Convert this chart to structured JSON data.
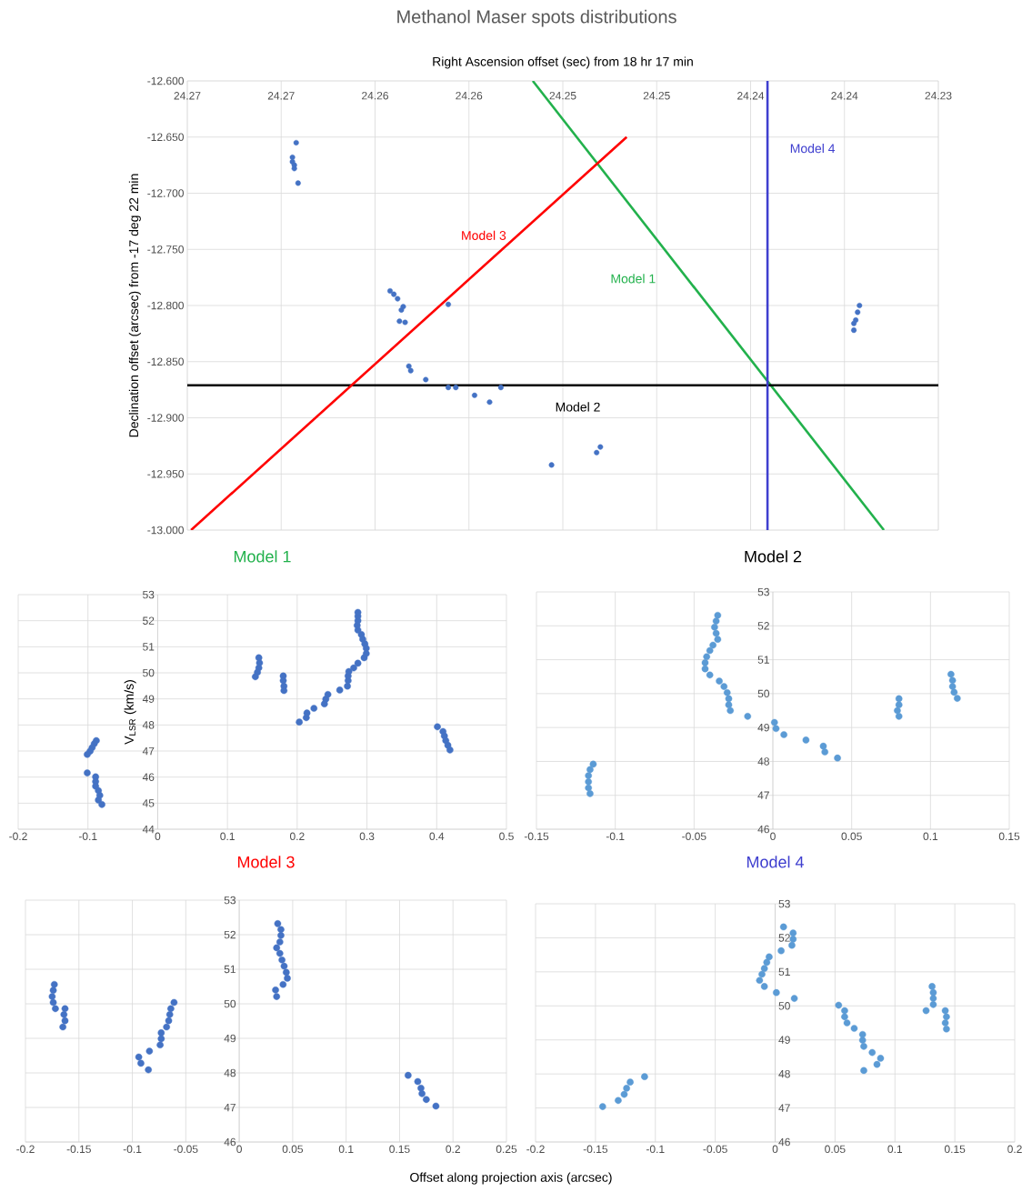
{
  "chart_data": [
    {
      "type": "scatter",
      "title": "Methanol Maser spots distributions",
      "xlabel": "Right Ascension offset (sec) from 18 hr 17 min",
      "ylabel": "Declination offset (arcsec) from -17 deg 22 min",
      "xlim": [
        24.27,
        24.23
      ],
      "ylim": [
        -13.0,
        -12.6
      ],
      "xticks": [
        {
          "value": 24.27,
          "label": "24.27"
        },
        {
          "value": 24.265,
          "label": "24.27"
        },
        {
          "value": 24.26,
          "label": "24.26"
        },
        {
          "value": 24.255,
          "label": "24.26"
        },
        {
          "value": 24.25,
          "label": "24.25"
        },
        {
          "value": 24.245,
          "label": "24.25"
        },
        {
          "value": 24.24,
          "label": "24.24"
        },
        {
          "value": 24.235,
          "label": "24.24"
        },
        {
          "value": 24.23,
          "label": "24.23"
        }
      ],
      "yticks": [
        {
          "value": -13.0,
          "label": "-13.000"
        },
        {
          "value": -12.95,
          "label": "-12.950"
        },
        {
          "value": -12.9,
          "label": "-12.900"
        },
        {
          "value": -12.85,
          "label": "-12.850"
        },
        {
          "value": -12.8,
          "label": "-12.800"
        },
        {
          "value": -12.75,
          "label": "-12.750"
        },
        {
          "value": -12.7,
          "label": "-12.700"
        },
        {
          "value": -12.65,
          "label": "-12.650"
        },
        {
          "value": -12.6,
          "label": "-12.600"
        }
      ],
      "grid": true,
      "series": [
        {
          "marker": "circle",
          "color": "#4472c4",
          "x": [
            24.2642,
            24.2644,
            24.2644,
            24.2643,
            24.2643,
            24.2641,
            24.2592,
            24.259,
            24.2588,
            24.2585,
            24.2586,
            24.2587,
            24.2584,
            24.2561,
            24.2582,
            24.2581,
            24.2573,
            24.2561,
            24.2557,
            24.2547,
            24.2539,
            24.2533,
            24.2506,
            24.2482,
            24.248,
            24.2342,
            24.2343,
            24.2344,
            24.2345,
            24.2345
          ],
          "values": [
            -12.655,
            -12.668,
            -12.672,
            -12.675,
            -12.678,
            -12.691,
            -12.787,
            -12.79,
            -12.794,
            -12.801,
            -12.804,
            -12.814,
            -12.815,
            -12.799,
            -12.854,
            -12.858,
            -12.866,
            -12.873,
            -12.873,
            -12.88,
            -12.886,
            -12.873,
            -12.942,
            -12.931,
            -12.926,
            -12.8,
            -12.806,
            -12.813,
            -12.816,
            -12.822
          ]
        },
        {
          "type": "line",
          "name": "Model 1",
          "color": "#22b14c",
          "x": [
            24.2516,
            24.2329
          ],
          "values": [
            -12.6,
            -13.0
          ]
        },
        {
          "type": "line",
          "name": "Model 2",
          "color": "#000000",
          "x": [
            24.27,
            24.23
          ],
          "values": [
            -12.871,
            -12.871
          ]
        },
        {
          "type": "line",
          "name": "Model 3",
          "color": "#ff0000",
          "x": [
            24.2698,
            24.2466
          ],
          "values": [
            -13.0,
            -12.65
          ]
        },
        {
          "type": "line",
          "name": "Model 4",
          "color": "#3f3fcf",
          "x": [
            24.2391,
            24.2391
          ],
          "values": [
            -12.6,
            -13.0
          ]
        }
      ]
    },
    {
      "type": "scatter",
      "title": "Model 1",
      "ylabel": "V$_{LSR}$ (km/s)",
      "xlim": [
        -0.2,
        0.5
      ],
      "ylim": [
        44,
        53
      ],
      "xticks": [
        -0.2,
        -0.1,
        0,
        0.1,
        0.2,
        0.3,
        0.4,
        0.5
      ],
      "yticks": [
        44,
        45,
        46,
        47,
        48,
        49,
        50,
        51,
        52,
        53
      ],
      "grid": true,
      "marker": "circle",
      "series": [
        {
          "color": "#4472c4",
          "x": [
            -0.101,
            -0.089,
            -0.089,
            -0.089,
            -0.085,
            -0.083,
            -0.085,
            -0.08,
            -0.088,
            -0.091,
            -0.094,
            -0.097,
            -0.101,
            0.145,
            0.146,
            0.145,
            0.143,
            0.14,
            0.18,
            0.18,
            0.181,
            0.181,
            0.203,
            0.213,
            0.214,
            0.224,
            0.239,
            0.241,
            0.244,
            0.261,
            0.272,
            0.273,
            0.273,
            0.274,
            0.281,
            0.287,
            0.296,
            0.299,
            0.299,
            0.297,
            0.294,
            0.292,
            0.287,
            0.286,
            0.287,
            0.287,
            0.287,
            0.401,
            0.409,
            0.411,
            0.413,
            0.416,
            0.419
          ],
          "values": [
            46.16,
            46.01,
            45.83,
            45.65,
            45.48,
            45.3,
            45.12,
            44.95,
            47.4,
            47.28,
            47.13,
            46.99,
            46.87,
            50.58,
            50.38,
            50.19,
            50.02,
            49.85,
            49.88,
            49.7,
            49.49,
            49.32,
            48.11,
            48.28,
            48.46,
            48.64,
            48.81,
            48.99,
            49.17,
            49.34,
            49.49,
            49.7,
            49.88,
            50.05,
            50.19,
            50.37,
            50.58,
            50.74,
            50.94,
            51.11,
            51.29,
            51.47,
            51.64,
            51.82,
            52.0,
            52.17,
            52.32,
            47.93,
            47.75,
            47.58,
            47.4,
            47.22,
            47.04
          ]
        }
      ]
    },
    {
      "type": "scatter",
      "title": "Model 2",
      "xlim": [
        -0.15,
        0.15
      ],
      "ylim": [
        46,
        53
      ],
      "xticks": [
        -0.15,
        -0.1,
        -0.05,
        0,
        0.05,
        0.1,
        0.15
      ],
      "yticks": [
        46,
        47,
        48,
        49,
        50,
        51,
        52,
        53
      ],
      "grid": true,
      "marker": "circle",
      "series": [
        {
          "color": "#5b9bd5",
          "x": [
            -0.114,
            -0.116,
            -0.117,
            -0.117,
            -0.117,
            -0.116,
            -0.035,
            -0.036,
            -0.037,
            -0.036,
            -0.035,
            -0.038,
            -0.04,
            -0.042,
            -0.043,
            -0.043,
            -0.04,
            -0.034,
            -0.031,
            -0.029,
            -0.028,
            -0.028,
            -0.027,
            -0.016,
            0.001,
            0.002,
            0.007,
            0.021,
            0.032,
            0.033,
            0.041,
            0.08,
            0.08,
            0.079,
            0.08,
            0.113,
            0.114,
            0.114,
            0.115,
            0.117
          ],
          "values": [
            47.92,
            47.76,
            47.58,
            47.4,
            47.22,
            47.05,
            52.31,
            52.14,
            51.96,
            51.78,
            51.6,
            51.43,
            51.27,
            51.09,
            50.91,
            50.73,
            50.55,
            50.37,
            50.21,
            50.03,
            49.85,
            49.67,
            49.5,
            49.33,
            49.15,
            48.97,
            48.79,
            48.63,
            48.45,
            48.28,
            48.1,
            49.85,
            49.67,
            49.5,
            49.33,
            50.57,
            50.39,
            50.21,
            50.04,
            49.86
          ]
        }
      ]
    },
    {
      "type": "scatter",
      "title": "Model 3",
      "xlabel": "Offset along projection axis (arcsec)",
      "xlim": [
        -0.2,
        0.25
      ],
      "ylim": [
        46,
        53
      ],
      "xticks": [
        -0.2,
        -0.15,
        -0.1,
        -0.05,
        0,
        0.05,
        0.1,
        0.15,
        0.2,
        0.25
      ],
      "yticks": [
        46,
        47,
        48,
        49,
        50,
        51,
        52,
        53
      ],
      "grid": true,
      "marker": "circle",
      "series": [
        {
          "color": "#4472c4",
          "x": [
            -0.173,
            -0.174,
            -0.175,
            -0.174,
            -0.172,
            -0.163,
            -0.164,
            -0.163,
            -0.165,
            -0.061,
            -0.064,
            -0.065,
            -0.066,
            -0.068,
            -0.073,
            -0.073,
            -0.074,
            -0.084,
            -0.094,
            -0.092,
            -0.085,
            0.036,
            0.039,
            0.039,
            0.038,
            0.035,
            0.038,
            0.04,
            0.042,
            0.044,
            0.045,
            0.041,
            0.034,
            0.035,
            0.158,
            0.167,
            0.17,
            0.171,
            0.175,
            0.184
          ],
          "values": [
            50.56,
            50.39,
            50.21,
            50.04,
            49.86,
            49.86,
            49.69,
            49.51,
            49.33,
            50.04,
            49.86,
            49.69,
            49.51,
            49.33,
            49.16,
            48.99,
            48.81,
            48.63,
            48.46,
            48.28,
            48.09,
            52.32,
            52.15,
            51.98,
            51.79,
            51.62,
            51.46,
            51.27,
            51.09,
            50.91,
            50.74,
            50.56,
            50.4,
            50.21,
            47.93,
            47.75,
            47.56,
            47.4,
            47.23,
            47.04
          ]
        }
      ]
    },
    {
      "type": "scatter",
      "title": "Model 4",
      "xlim": [
        -0.2,
        0.2
      ],
      "ylim": [
        46,
        53
      ],
      "xticks": [
        -0.2,
        -0.15,
        -0.1,
        -0.05,
        0,
        0.05,
        0.1,
        0.15,
        0.2
      ],
      "yticks": [
        46,
        47,
        48,
        49,
        50,
        51,
        52,
        53
      ],
      "grid": true,
      "marker": "circle",
      "series": [
        {
          "color": "#5b9bd5",
          "x": [
            -0.144,
            -0.131,
            -0.126,
            -0.124,
            -0.121,
            -0.109,
            0.007,
            0.015,
            0.015,
            0.014,
            0.005,
            -0.005,
            -0.007,
            -0.009,
            -0.011,
            -0.013,
            -0.009,
            0.001,
            0.016,
            0.053,
            0.058,
            0.058,
            0.06,
            0.066,
            0.073,
            0.073,
            0.074,
            0.081,
            0.088,
            0.085,
            0.074,
            0.131,
            0.132,
            0.132,
            0.132,
            0.126,
            0.142,
            0.143,
            0.142,
            0.143
          ],
          "values": [
            47.04,
            47.22,
            47.4,
            47.58,
            47.76,
            47.92,
            52.32,
            52.14,
            51.96,
            51.78,
            51.62,
            51.44,
            51.28,
            51.1,
            50.93,
            50.75,
            50.57,
            50.39,
            50.22,
            50.02,
            49.86,
            49.68,
            49.5,
            49.34,
            49.16,
            48.99,
            48.81,
            48.63,
            48.46,
            48.28,
            48.1,
            50.57,
            50.39,
            50.22,
            50.04,
            49.86,
            49.86,
            49.68,
            49.5,
            49.32
          ]
        }
      ]
    }
  ]
}
